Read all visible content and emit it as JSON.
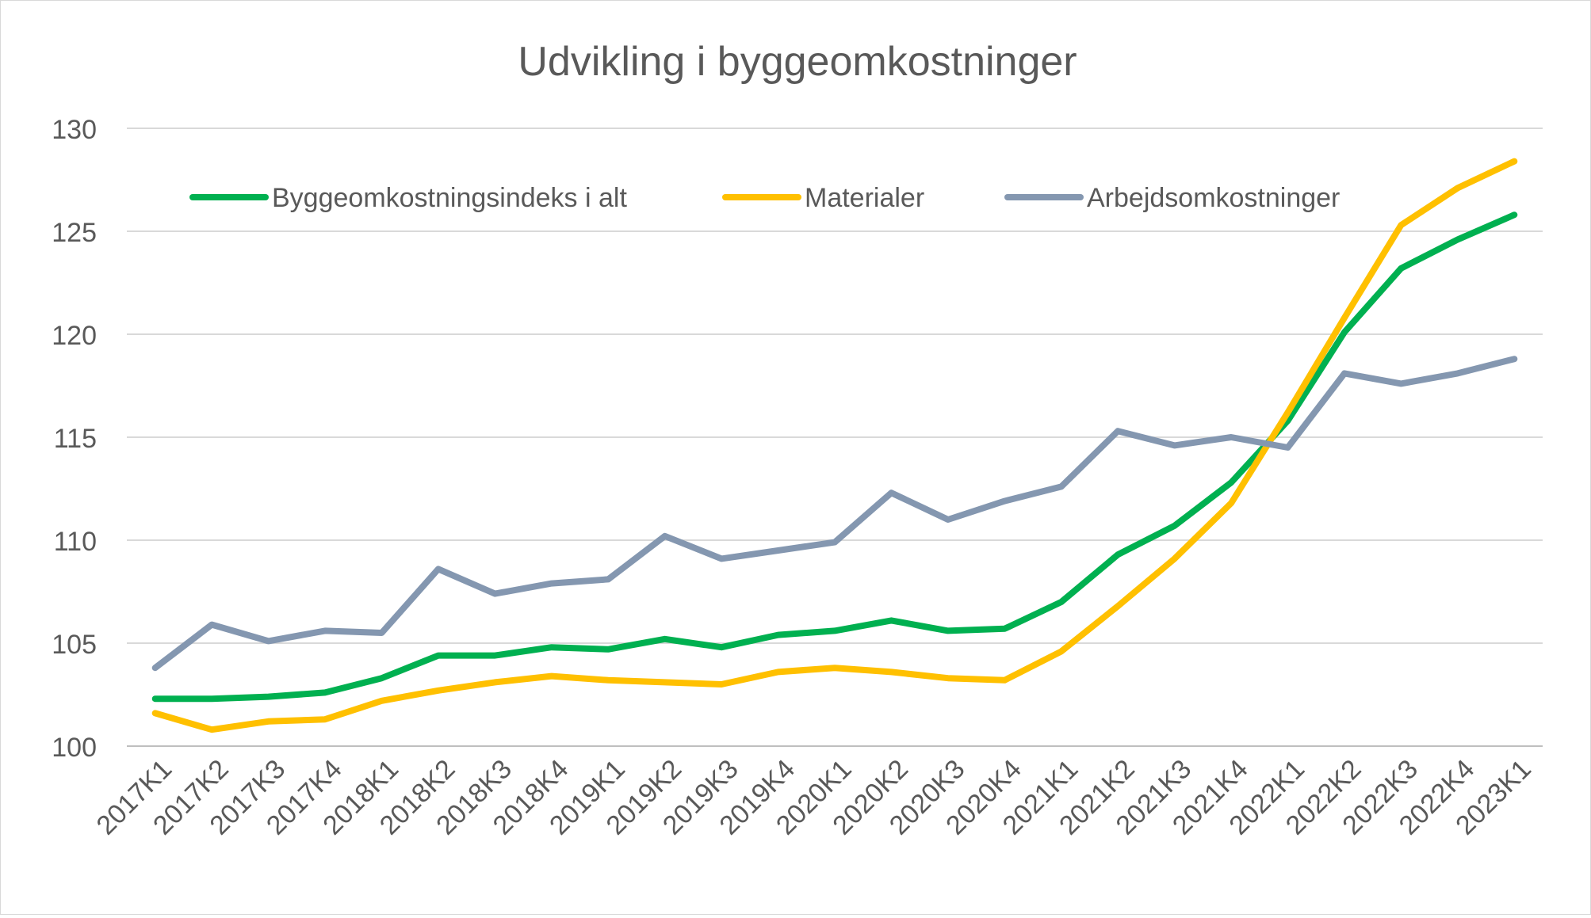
{
  "chart_data": {
    "type": "line",
    "title": "Udvikling i byggeomkostninger",
    "xlabel": "",
    "ylabel": "",
    "ylim": [
      100,
      130
    ],
    "yticks": [
      100,
      105,
      110,
      115,
      120,
      125,
      130
    ],
    "grid": true,
    "legend_position": "top",
    "categories": [
      "2017K1",
      "2017K2",
      "2017K3",
      "2017K4",
      "2018K1",
      "2018K2",
      "2018K3",
      "2018K4",
      "2019K1",
      "2019K2",
      "2019K3",
      "2019K4",
      "2020K1",
      "2020K2",
      "2020K3",
      "2020K4",
      "2021K1",
      "2021K2",
      "2021K3",
      "2021K4",
      "2022K1",
      "2022K2",
      "2022K3",
      "2022K4",
      "2023K1"
    ],
    "series": [
      {
        "name": "Byggeomkostningsindeks i alt",
        "color": "#00b050",
        "values": [
          102.3,
          102.3,
          102.4,
          102.6,
          103.3,
          104.4,
          104.4,
          104.8,
          104.7,
          105.2,
          104.8,
          105.4,
          105.6,
          106.1,
          105.6,
          105.7,
          107.0,
          109.3,
          110.7,
          112.8,
          115.8,
          120.1,
          123.2,
          124.6,
          125.8
        ]
      },
      {
        "name": "Materialer",
        "color": "#ffc000",
        "values": [
          101.6,
          100.8,
          101.2,
          101.3,
          102.2,
          102.7,
          103.1,
          103.4,
          103.2,
          103.1,
          103.0,
          103.6,
          103.8,
          103.6,
          103.3,
          103.2,
          104.6,
          106.8,
          109.1,
          111.8,
          116.2,
          120.8,
          125.3,
          127.1,
          128.4
        ]
      },
      {
        "name": "Arbejdsomkostninger",
        "color": "#8497b0",
        "values": [
          103.8,
          105.9,
          105.1,
          105.6,
          105.5,
          108.6,
          107.4,
          107.9,
          108.1,
          110.2,
          109.1,
          109.5,
          109.9,
          112.3,
          111.0,
          111.9,
          112.6,
          115.3,
          114.6,
          115.0,
          114.5,
          118.1,
          117.6,
          118.1,
          118.8
        ]
      }
    ]
  }
}
